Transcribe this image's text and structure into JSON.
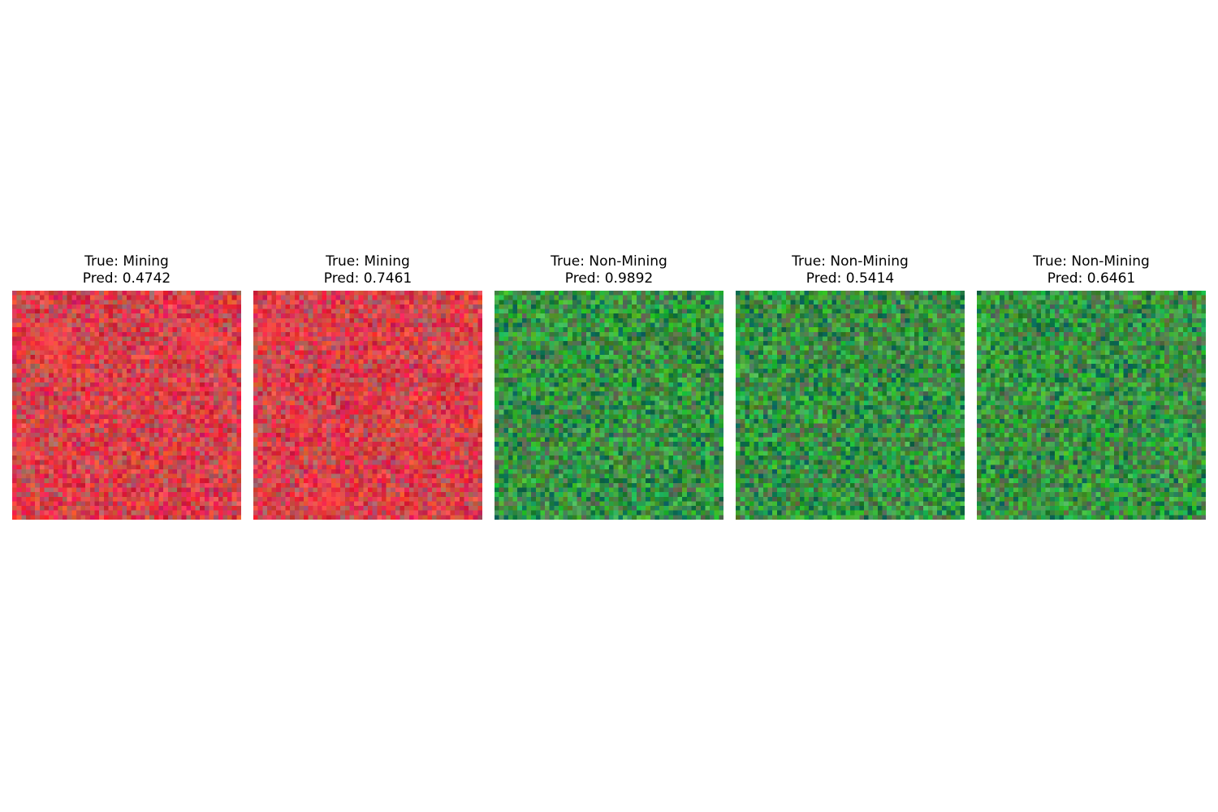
{
  "panels": [
    {
      "true_label": "True: Mining",
      "pred_label": "Pred: 0.4742",
      "class": "Mining",
      "pred": 0.4742,
      "scheme": "mining",
      "seed": 11
    },
    {
      "true_label": "True: Mining",
      "pred_label": "Pred: 0.7461",
      "class": "Mining",
      "pred": 0.7461,
      "scheme": "mining",
      "seed": 27
    },
    {
      "true_label": "True: Non-Mining",
      "pred_label": "Pred: 0.9892",
      "class": "Non-Mining",
      "pred": 0.9892,
      "scheme": "nonmining",
      "seed": 43
    },
    {
      "true_label": "True: Non-Mining",
      "pred_label": "Pred: 0.5414",
      "class": "Non-Mining",
      "pred": 0.5414,
      "scheme": "nonmining",
      "seed": 59
    },
    {
      "true_label": "True: Non-Mining",
      "pred_label": "Pred: 0.6461",
      "class": "Non-Mining",
      "pred": 0.6461,
      "scheme": "nonmining",
      "seed": 71
    }
  ],
  "colors": {
    "mining_base": "#d8284a",
    "mining_hot": "#ff3a3a",
    "nonmining_base": "#2f9e3c",
    "background": "#ffffff"
  }
}
